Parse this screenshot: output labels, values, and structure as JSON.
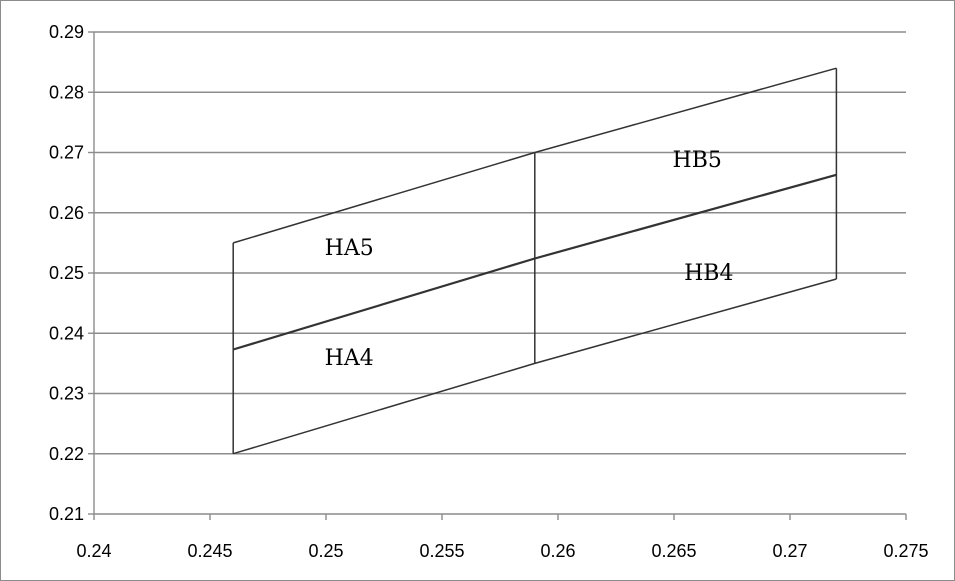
{
  "chart_data": {
    "type": "line",
    "xlim": [
      0.24,
      0.275
    ],
    "ylim": [
      0.21,
      0.29
    ],
    "x_ticks": [
      0.24,
      0.245,
      0.25,
      0.255,
      0.26,
      0.265,
      0.27,
      0.275
    ],
    "y_ticks": [
      0.21,
      0.22,
      0.23,
      0.24,
      0.25,
      0.26,
      0.27,
      0.28,
      0.29
    ],
    "x_tick_labels": [
      "0.24",
      "0.245",
      "0.25",
      "0.255",
      "0.26",
      "0.265",
      "0.27",
      "0.275"
    ],
    "y_tick_labels": [
      "0.21",
      "0.22",
      "0.23",
      "0.24",
      "0.25",
      "0.26",
      "0.27",
      "0.28",
      "0.29"
    ],
    "grid": "horizontal",
    "line_color": "#333333",
    "series": [
      {
        "x": [
          0.246,
          0.259,
          0.272
        ],
        "y": [
          0.255,
          0.27,
          0.284
        ]
      },
      {
        "x": [
          0.246,
          0.259,
          0.272
        ],
        "y": [
          0.2373,
          0.2524,
          0.2663
        ]
      },
      {
        "x": [
          0.246,
          0.259,
          0.272
        ],
        "y": [
          0.22,
          0.235,
          0.249
        ]
      },
      {
        "x": [
          0.246,
          0.246
        ],
        "y": [
          0.22,
          0.255
        ]
      },
      {
        "x": [
          0.259,
          0.259
        ],
        "y": [
          0.235,
          0.27
        ]
      },
      {
        "x": [
          0.272,
          0.272
        ],
        "y": [
          0.249,
          0.284
        ]
      }
    ],
    "annotations": [
      {
        "text": "HA5",
        "x": 0.251,
        "y": 0.253
      },
      {
        "text": "HA4",
        "x": 0.251,
        "y": 0.2347
      },
      {
        "text": "HB5",
        "x": 0.266,
        "y": 0.2676
      },
      {
        "text": "HB4",
        "x": 0.2665,
        "y": 0.2488
      }
    ]
  }
}
